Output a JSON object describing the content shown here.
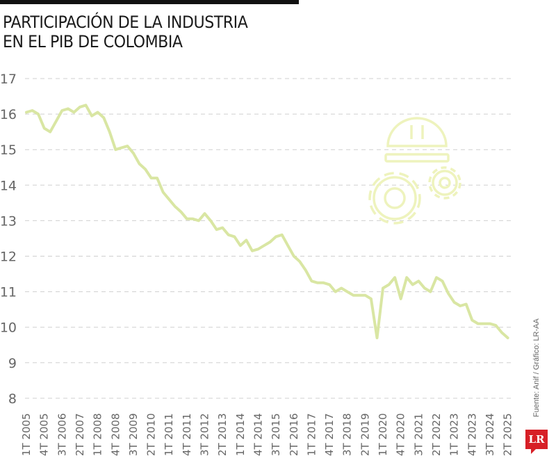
{
  "header": {
    "title_line1": "PARTICIPACIÓN DE LA INDUSTRIA",
    "title_line2": "EN EL PIB DE COLOMBIA"
  },
  "footer": {
    "source": "Fuente: Anif / Gráfico: LR-AA",
    "logo": "LR"
  },
  "colors": {
    "line": "#d9e6a3",
    "grid": "#cfcfcf",
    "icon": "#f1f5c4",
    "logo": "#d71f26"
  },
  "chart_data": {
    "type": "line",
    "title": "PARTICIPACIÓN DE LA INDUSTRIA EN EL PIB DE COLOMBIA",
    "xlabel": "",
    "ylabel": "",
    "ylim": [
      8,
      17
    ],
    "yticks": [
      17,
      16,
      15,
      14,
      13,
      12,
      11,
      10,
      9,
      8
    ],
    "grid": "horizontal dashed",
    "xtick_labels": [
      "1T 2005",
      "4T 2005",
      "3T 2006",
      "2T 2007",
      "1T 2008",
      "4T 2008",
      "3T 2009",
      "2T 2010",
      "1T 2011",
      "4T 2011",
      "3T 2012",
      "2T 2013",
      "1T 2014",
      "4T 2014",
      "3T 2015",
      "2T 2016",
      "1T 2017",
      "4T 2017",
      "3T 2018",
      "2T 2019",
      "1T 2020",
      "4T 2020",
      "3T 2021",
      "2T 2022",
      "1T 2023",
      "4T 2023",
      "3T 2024",
      "2T 2025"
    ],
    "series": [
      {
        "name": "Participación de la industria en el PIB (%)",
        "x_start": "1T 2005",
        "frequency": "quarterly",
        "values": [
          16.05,
          16.1,
          16.0,
          15.6,
          15.5,
          15.8,
          16.1,
          16.15,
          16.05,
          16.2,
          16.25,
          15.95,
          16.05,
          15.9,
          15.5,
          15.0,
          15.05,
          15.1,
          14.9,
          14.6,
          14.45,
          14.2,
          14.2,
          13.8,
          13.6,
          13.4,
          13.25,
          13.05,
          13.05,
          13.0,
          13.2,
          13.0,
          12.75,
          12.8,
          12.6,
          12.55,
          12.3,
          12.45,
          12.15,
          12.2,
          12.3,
          12.4,
          12.55,
          12.6,
          12.3,
          12.0,
          11.85,
          11.6,
          11.3,
          11.25,
          11.25,
          11.2,
          11.0,
          11.1,
          11.0,
          10.9,
          10.9,
          10.9,
          10.8,
          9.7,
          11.1,
          11.2,
          11.4,
          10.8,
          11.4,
          11.2,
          11.3,
          11.1,
          11.0,
          11.4,
          11.3,
          10.95,
          10.7,
          10.6,
          10.65,
          10.2,
          10.1,
          10.1,
          10.1,
          10.05,
          9.85,
          9.7
        ]
      }
    ],
    "annotations": [
      "industrial icon: hard hat with gears (decorative)"
    ]
  }
}
